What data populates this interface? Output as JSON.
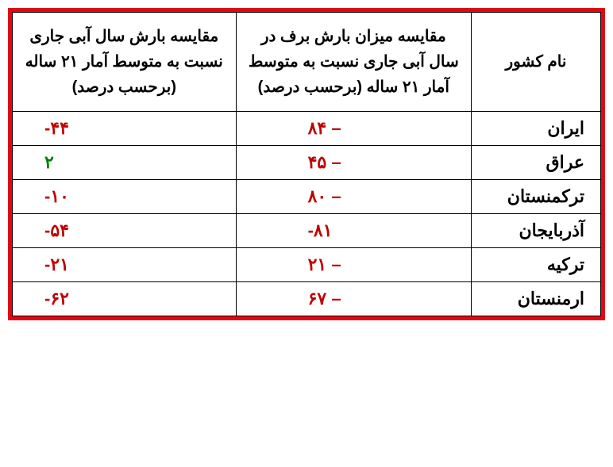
{
  "table": {
    "columns": [
      {
        "key": "name",
        "label": "نام کشور"
      },
      {
        "key": "snow",
        "label": "مقایسه میزان بارش برف در سال آبی جاری نسبت به متوسط آمار ۲۱ ساله (برحسب درصد)"
      },
      {
        "key": "rain",
        "label": "مقایسه بارش سال آبی جاری نسبت به متوسط آمار ۲۱ ساله (برحسب درصد)"
      }
    ],
    "rows": [
      {
        "name": "ایران",
        "snow": "۸۴ –",
        "snow_cls": "neg",
        "rain": "-۴۴",
        "rain_cls": "neg"
      },
      {
        "name": "عراق",
        "snow": "۴۵ –",
        "snow_cls": "neg",
        "rain": "۲",
        "rain_cls": "pos"
      },
      {
        "name": "ترکمنستان",
        "snow": "۸۰ –",
        "snow_cls": "neg",
        "rain": "-۱۰",
        "rain_cls": "neg"
      },
      {
        "name": "آذربایجان",
        "snow": "-۸۱",
        "snow_cls": "neg",
        "rain": "-۵۴",
        "rain_cls": "neg"
      },
      {
        "name": "ترکیه",
        "snow": "۲۱ –",
        "snow_cls": "neg",
        "rain": "-۲۱",
        "rain_cls": "neg"
      },
      {
        "name": "ارمنستان",
        "snow": "۶۷ –",
        "snow_cls": "neg",
        "rain": "-۶۲",
        "rain_cls": "neg"
      }
    ],
    "border_color": "#e30613",
    "grid_color": "#000000",
    "neg_color": "#c00000",
    "pos_color": "#008000",
    "background_color": "#ffffff",
    "header_fontsize": 20,
    "cell_fontsize": 22
  }
}
